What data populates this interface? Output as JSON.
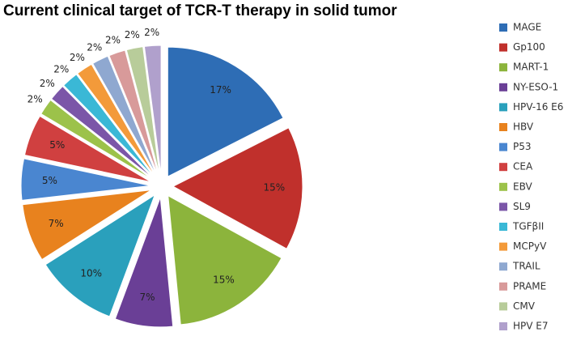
{
  "chart_data": {
    "type": "pie",
    "title": "Current clinical target of TCR-T therapy in solid tumor",
    "categories": [
      "MAGE",
      "Gp100",
      "MART-1",
      "NY-ESO-1",
      "HPV-16 E6",
      "HBV",
      "P53",
      "CEA",
      "EBV",
      "SL9",
      "TGFβII",
      "MCPyV",
      "TRAIL",
      "PRAME",
      "CMV",
      "HPV E7"
    ],
    "values": [
      17,
      15,
      15,
      7,
      10,
      7,
      5,
      5,
      2,
      2,
      2,
      2,
      2,
      2,
      2,
      2
    ],
    "value_labels": [
      "17%",
      "15%",
      "15%",
      "7%",
      "10%",
      "7%",
      "5%",
      "5%",
      "2%",
      "2%",
      "2%",
      "2%",
      "2%",
      "2%",
      "2%",
      "2%"
    ],
    "colors": [
      "#2e6db5",
      "#c0302c",
      "#8cb43c",
      "#6a3f96",
      "#2aa0bc",
      "#e8821e",
      "#4a86d0",
      "#d04040",
      "#9cc24a",
      "#7b56a8",
      "#3ab8d6",
      "#f39a3a",
      "#8fa8d0",
      "#d89a9a",
      "#b8cc9a",
      "#b0a0cc"
    ],
    "legend": "right"
  }
}
